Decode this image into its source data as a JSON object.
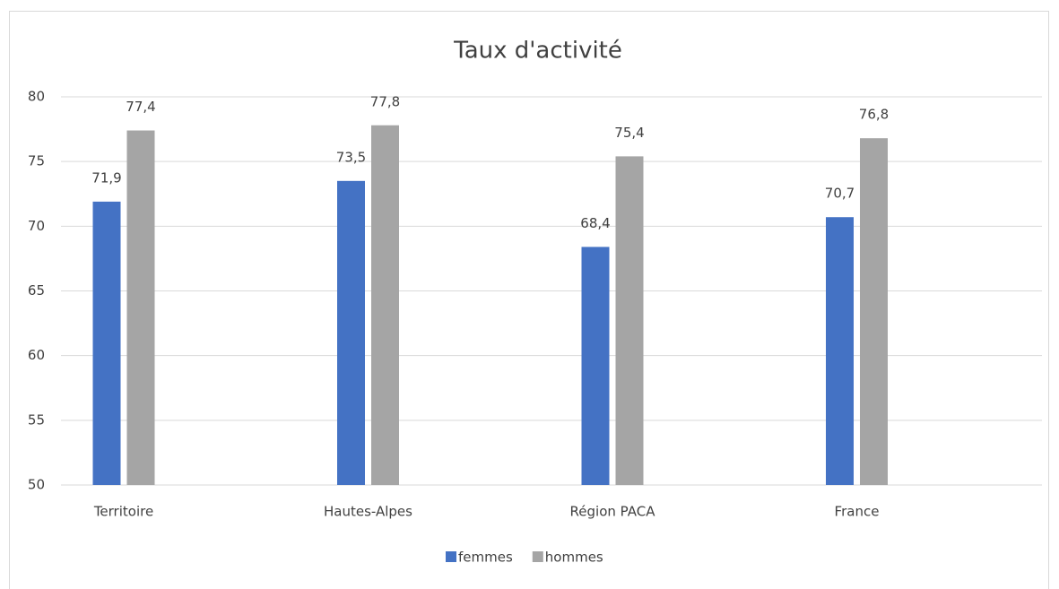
{
  "chart_data": {
    "type": "bar",
    "title": "Taux d'activité",
    "categories": [
      "Territoire",
      "Hautes-Alpes",
      "Région PACA",
      "France"
    ],
    "series": [
      {
        "name": "femmes",
        "color": "#4472c4",
        "values": [
          71.9,
          73.5,
          68.4,
          70.7
        ],
        "value_labels": [
          "71,9",
          "73,5",
          "68,4",
          "70,7"
        ]
      },
      {
        "name": "hommes",
        "color": "#a5a5a5",
        "values": [
          77.4,
          77.8,
          75.4,
          76.8
        ],
        "value_labels": [
          "77,4",
          "77,8",
          "75,4",
          "76,8"
        ]
      }
    ],
    "ylim": [
      50,
      80
    ],
    "yticks": [
      50,
      55,
      60,
      65,
      70,
      75,
      80
    ],
    "grid": true,
    "legend": "bottom"
  }
}
